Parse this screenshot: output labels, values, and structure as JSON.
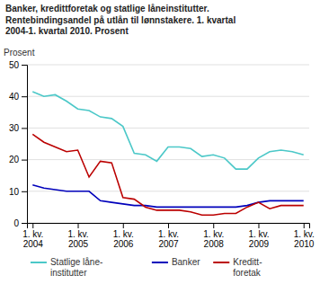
{
  "chart_data": {
    "type": "line",
    "title": "Banker, kredittforetak og statlige låneinstitutter.\nRentebindingsandel på utlån til lønnstakere. 1. kvartal\n2004-1. kvartal 2010. Prosent",
    "y_label": "Prosent",
    "categories": [
      "1. kv.\n2004",
      null,
      null,
      null,
      "1. kv.\n2005",
      null,
      null,
      null,
      "1. kv.\n2006",
      null,
      null,
      null,
      "1. kv.\n2007",
      null,
      null,
      null,
      "1. kv.\n2008",
      null,
      null,
      null,
      "1. kv.\n2009",
      null,
      null,
      null,
      "1. kv.\n2010"
    ],
    "series": [
      {
        "name": "Statlige låne-\ninstitutter",
        "color": "#4BC8C8",
        "values": [
          41.5,
          40.0,
          40.5,
          38.5,
          36.0,
          35.5,
          33.5,
          33.0,
          30.5,
          22.0,
          21.5,
          19.5,
          24.0,
          24.0,
          23.5,
          21.0,
          21.5,
          20.5,
          17.0,
          17.0,
          20.5,
          22.5,
          23.0,
          22.5,
          21.5
        ]
      },
      {
        "name": "Banker",
        "color": "#0000BB",
        "values": [
          12.0,
          11.0,
          10.5,
          10.0,
          10.0,
          10.0,
          7.0,
          6.5,
          6.0,
          5.5,
          5.5,
          5.0,
          5.0,
          5.0,
          5.0,
          5.0,
          5.0,
          5.0,
          5.0,
          5.5,
          6.5,
          7.0,
          7.0,
          7.0,
          7.0
        ]
      },
      {
        "name": "Kreditt-\nforetak",
        "color": "#BB0000",
        "values": [
          28.0,
          25.5,
          24.0,
          22.5,
          23.0,
          14.5,
          19.5,
          19.0,
          8.0,
          7.5,
          5.0,
          4.0,
          4.0,
          4.0,
          3.5,
          2.5,
          2.5,
          3.0,
          3.0,
          5.0,
          6.5,
          4.5,
          5.5,
          5.5,
          5.5
        ]
      }
    ],
    "ylim": [
      0,
      50
    ],
    "yticks": [
      0,
      10,
      20,
      30,
      40,
      50
    ],
    "grid": true,
    "legend": "bottom"
  }
}
